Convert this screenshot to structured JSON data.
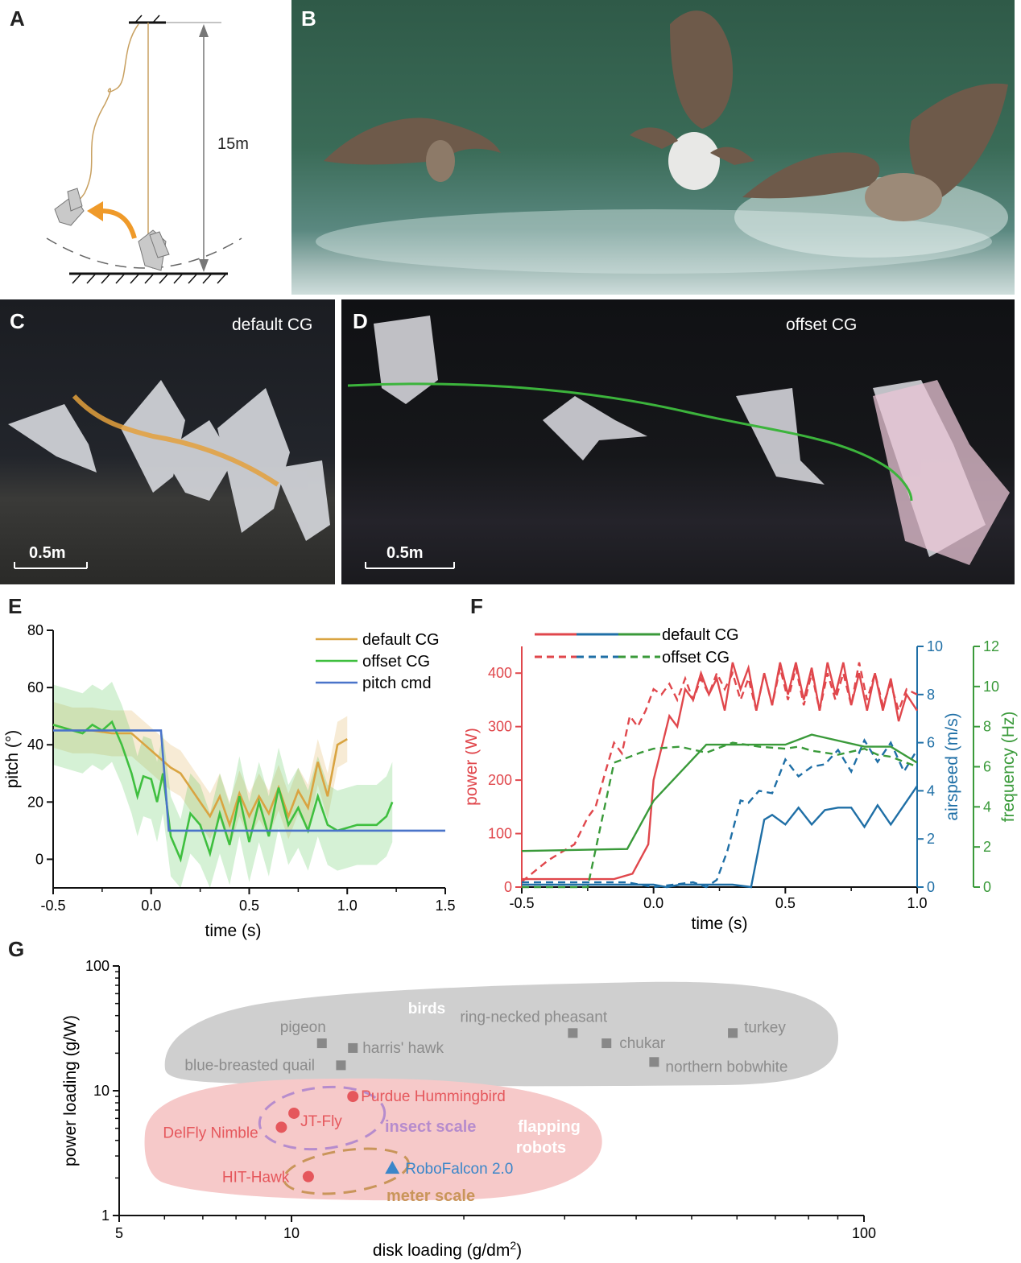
{
  "panels": {
    "A": {
      "label": "A",
      "height_label": "15m"
    },
    "B": {
      "label": "B"
    },
    "C": {
      "label": "C",
      "caption": "default CG",
      "scale": "0.5m"
    },
    "D": {
      "label": "D",
      "caption": "offset CG",
      "scale": "0.5m"
    },
    "E": {
      "label": "E"
    },
    "F": {
      "label": "F"
    },
    "G": {
      "label": "G"
    }
  },
  "colors": {
    "default_cg": "#d9a441",
    "offset_cg": "#3fbf3f",
    "pitch_cmd": "#4a74c9",
    "power": "#e0474c",
    "airspeed": "#1f6fa6",
    "frequency": "#3a9a3a",
    "birds_blob": "#cfcfcf",
    "robots_blob": "#f6c9c9",
    "insect": "#b68ccd",
    "meter": "#c9955a",
    "robofalcon": "#3b86c9"
  },
  "chart_data": [
    {
      "id": "E",
      "type": "line",
      "xlabel": "time (s)",
      "ylabel": "pitch (°)",
      "xlim": [
        -0.5,
        1.5
      ],
      "ylim": [
        -10,
        80
      ],
      "xticks": [
        "-0.5",
        "0.0",
        "0.5",
        "1.0",
        "1.5"
      ],
      "yticks": [
        "0",
        "20",
        "40",
        "60",
        "80"
      ],
      "legend": "top-right",
      "series": [
        {
          "name": "default CG",
          "color": "#d9a441",
          "x": [
            -0.5,
            -0.4,
            -0.3,
            -0.2,
            -0.1,
            -0.05,
            0.0,
            0.05,
            0.1,
            0.15,
            0.2,
            0.25,
            0.3,
            0.35,
            0.4,
            0.45,
            0.5,
            0.55,
            0.6,
            0.65,
            0.7,
            0.75,
            0.8,
            0.85,
            0.9,
            0.95,
            1.0
          ],
          "y": [
            47,
            45,
            45,
            44,
            44,
            41,
            38,
            35,
            32,
            30,
            25,
            20,
            15,
            22,
            12,
            23,
            15,
            22,
            16,
            25,
            15,
            24,
            18,
            34,
            22,
            40,
            42
          ]
        },
        {
          "name": "offset CG",
          "color": "#3fbf3f",
          "x": [
            -0.5,
            -0.45,
            -0.4,
            -0.35,
            -0.3,
            -0.25,
            -0.2,
            -0.15,
            -0.1,
            -0.07,
            -0.04,
            0.0,
            0.03,
            0.06,
            0.1,
            0.15,
            0.2,
            0.25,
            0.3,
            0.35,
            0.4,
            0.45,
            0.5,
            0.55,
            0.6,
            0.65,
            0.7,
            0.75,
            0.8,
            0.85,
            0.9,
            0.95,
            1.0,
            1.05,
            1.1,
            1.15,
            1.2,
            1.23
          ],
          "y": [
            47,
            46,
            45,
            44,
            47,
            45,
            48,
            40,
            30,
            22,
            29,
            28,
            20,
            30,
            8,
            0,
            16,
            12,
            2,
            16,
            5,
            22,
            6,
            20,
            8,
            25,
            12,
            18,
            10,
            22,
            12,
            10,
            11,
            12,
            12,
            12,
            15,
            20
          ]
        },
        {
          "name": "pitch cmd",
          "color": "#4a74c9",
          "x": [
            -0.5,
            0.05,
            0.09,
            1.5
          ],
          "y": [
            45,
            45,
            10,
            10
          ]
        }
      ]
    },
    {
      "id": "F",
      "type": "line",
      "xlabel": "time (s)",
      "xlim": [
        -0.5,
        1.0
      ],
      "xticks": [
        "-0.5",
        "0.0",
        "0.5",
        "1.0"
      ],
      "axes": [
        {
          "label": "power (W)",
          "side": "left",
          "lim": [
            0,
            450
          ],
          "ticks": [
            "0",
            "100",
            "200",
            "300",
            "400"
          ]
        },
        {
          "label": "airspeed (m/s)",
          "side": "right",
          "lim": [
            0,
            10
          ],
          "ticks": [
            "0",
            "2",
            "4",
            "6",
            "8",
            "10"
          ]
        },
        {
          "label": "frequency (Hz)",
          "side": "right",
          "lim": [
            0,
            12
          ],
          "ticks": [
            "0",
            "2",
            "4",
            "6",
            "8",
            "10",
            "12"
          ]
        }
      ],
      "legend": [
        "default CG",
        "offset CG"
      ],
      "series": [
        {
          "name": "default CG power",
          "axis": "power (W)",
          "style": "solid",
          "color": "#e0474c",
          "x": [
            -0.5,
            -0.3,
            -0.15,
            -0.08,
            -0.02,
            0.0,
            0.03,
            0.06,
            0.09,
            0.12,
            0.15,
            0.18,
            0.21,
            0.24,
            0.27,
            0.3,
            0.33,
            0.36,
            0.39,
            0.42,
            0.45,
            0.48,
            0.51,
            0.54,
            0.57,
            0.6,
            0.63,
            0.66,
            0.69,
            0.72,
            0.75,
            0.78,
            0.81,
            0.84,
            0.87,
            0.9,
            0.93,
            0.96,
            1.0
          ],
          "y": [
            15,
            15,
            15,
            25,
            80,
            200,
            260,
            320,
            300,
            370,
            350,
            400,
            360,
            390,
            330,
            420,
            370,
            410,
            330,
            400,
            340,
            420,
            360,
            420,
            350,
            410,
            330,
            420,
            360,
            420,
            340,
            400,
            330,
            400,
            330,
            390,
            310,
            360,
            330
          ]
        },
        {
          "name": "offset CG power",
          "axis": "power (W)",
          "style": "dashed",
          "color": "#e0474c",
          "x": [
            -0.5,
            -0.4,
            -0.3,
            -0.25,
            -0.22,
            -0.18,
            -0.15,
            -0.12,
            -0.09,
            -0.06,
            -0.03,
            0.0,
            0.03,
            0.06,
            0.09,
            0.12,
            0.15,
            0.18,
            0.21,
            0.24,
            0.27,
            0.3,
            0.33,
            0.36,
            0.39,
            0.42,
            0.45,
            0.48,
            0.51,
            0.54,
            0.57,
            0.6,
            0.63,
            0.66,
            0.69,
            0.72,
            0.75,
            0.78,
            0.81,
            0.84,
            0.87,
            0.9,
            0.93,
            0.96,
            1.0
          ],
          "y": [
            10,
            50,
            80,
            130,
            150,
            220,
            270,
            250,
            320,
            300,
            330,
            370,
            360,
            380,
            350,
            390,
            350,
            390,
            360,
            400,
            370,
            400,
            350,
            390,
            330,
            400,
            340,
            410,
            350,
            410,
            340,
            400,
            330,
            400,
            350,
            400,
            340,
            420,
            350,
            400,
            340,
            380,
            330,
            370,
            360
          ]
        },
        {
          "name": "default CG airspeed",
          "axis": "airspeed (m/s)",
          "style": "solid",
          "color": "#1f6fa6",
          "x": [
            -0.5,
            0.0,
            0.05,
            0.1,
            0.2,
            0.3,
            0.37,
            0.42,
            0.45,
            0.5,
            0.55,
            0.6,
            0.65,
            0.7,
            0.75,
            0.8,
            0.85,
            0.9,
            0.95,
            1.0
          ],
          "y": [
            0.1,
            0.1,
            0,
            0.1,
            0.1,
            0.1,
            0,
            2.8,
            3,
            2.6,
            3.3,
            2.6,
            3.2,
            3.3,
            3.3,
            2.5,
            3.4,
            2.6,
            3.4,
            4.2
          ]
        },
        {
          "name": "offset CG airspeed",
          "axis": "airspeed (m/s)",
          "style": "dashed",
          "color": "#1f6fa6",
          "x": [
            -0.5,
            -0.1,
            0.0,
            0.15,
            0.2,
            0.24,
            0.28,
            0.33,
            0.36,
            0.4,
            0.45,
            0.5,
            0.55,
            0.6,
            0.65,
            0.7,
            0.75,
            0.8,
            0.85,
            0.9,
            0.95,
            1.0
          ],
          "y": [
            0.2,
            0.2,
            0,
            0.2,
            0,
            0.3,
            1.5,
            3.6,
            3.5,
            4,
            3.9,
            5.3,
            4.6,
            5,
            5.1,
            5.7,
            4.8,
            6.1,
            5.2,
            6,
            4.8,
            5.7
          ]
        },
        {
          "name": "default CG frequency",
          "axis": "frequency (Hz)",
          "style": "solid",
          "color": "#3a9a3a",
          "x": [
            -0.5,
            -0.1,
            0.0,
            0.2,
            0.5,
            0.6,
            0.8,
            0.9,
            1.0
          ],
          "y": [
            1.8,
            1.9,
            4.3,
            7.1,
            7.1,
            7.6,
            7.0,
            7.0,
            6.2
          ]
        },
        {
          "name": "offset CG frequency",
          "axis": "frequency (Hz)",
          "style": "dashed",
          "color": "#3a9a3a",
          "x": [
            -0.5,
            -0.25,
            -0.15,
            -0.05,
            0.0,
            0.1,
            0.2,
            0.3,
            0.4,
            0.5,
            0.55,
            0.6,
            0.7,
            0.8,
            0.85,
            0.9,
            1.0
          ],
          "y": [
            0,
            0,
            6.2,
            6.7,
            6.9,
            7.0,
            6.7,
            7.2,
            7.0,
            6.9,
            7.0,
            6.8,
            6.6,
            6.9,
            6.6,
            6.5,
            6.0
          ]
        }
      ]
    },
    {
      "id": "G",
      "type": "scatter",
      "xlabel": "disk loading (g/dm²)",
      "ylabel": "power loading (g/W)",
      "xscale": "log",
      "yscale": "log",
      "xlim": [
        5,
        100
      ],
      "ylim": [
        1,
        100
      ],
      "xticks": [
        "5",
        "10",
        "100"
      ],
      "yticks": [
        "1",
        "10",
        "100"
      ],
      "groups": {
        "birds": "birds",
        "robots": "flapping robots",
        "insect": "insect scale",
        "meter": "meter scale"
      },
      "points": [
        {
          "name": "pigeon",
          "x": 11.3,
          "y": 24,
          "group": "bird",
          "marker": "square"
        },
        {
          "name": "harris' hawk",
          "x": 12.8,
          "y": 22,
          "group": "bird",
          "marker": "square"
        },
        {
          "name": "blue-breasted quail",
          "x": 12.2,
          "y": 16,
          "group": "bird",
          "marker": "square"
        },
        {
          "name": "ring-necked pheasant",
          "x": 31,
          "y": 29,
          "group": "bird",
          "marker": "square"
        },
        {
          "name": "chukar",
          "x": 35.5,
          "y": 24,
          "group": "bird",
          "marker": "square"
        },
        {
          "name": "northern bobwhite",
          "x": 43,
          "y": 17,
          "group": "bird",
          "marker": "square"
        },
        {
          "name": "turkey",
          "x": 59,
          "y": 29,
          "group": "bird",
          "marker": "square"
        },
        {
          "name": "Purdue Hummingbird",
          "x": 12.8,
          "y": 9,
          "group": "robot",
          "marker": "circle"
        },
        {
          "name": "JT-Fly",
          "x": 10.1,
          "y": 6.6,
          "group": "robot",
          "marker": "circle"
        },
        {
          "name": "DelFly Nimble",
          "x": 9.6,
          "y": 5.1,
          "group": "robot",
          "marker": "circle"
        },
        {
          "name": "HIT-Hawk",
          "x": 10.7,
          "y": 2.05,
          "group": "robot",
          "marker": "circle"
        },
        {
          "name": "RoboFalcon 2.0",
          "x": 15,
          "y": 2.4,
          "group": "robofalcon",
          "marker": "triangle"
        }
      ]
    }
  ]
}
